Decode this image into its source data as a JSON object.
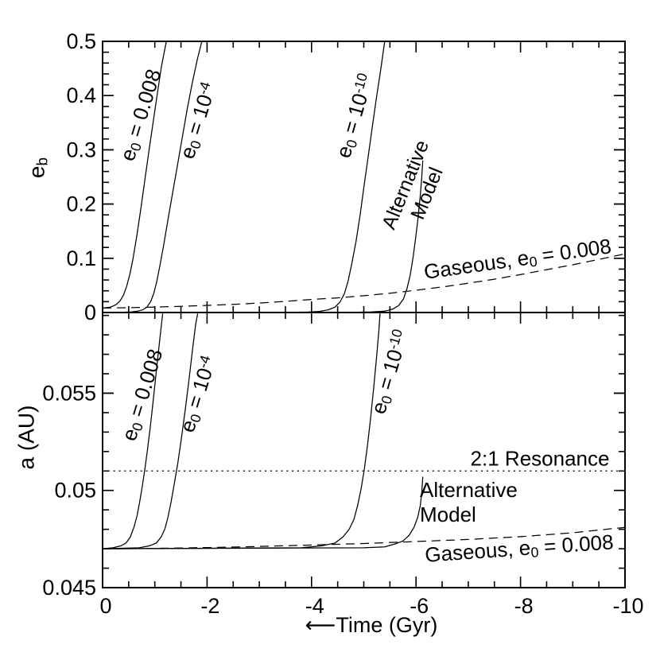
{
  "labels": {
    "ylabel_top": {
      "pre": "e",
      "sub": "b"
    },
    "ylabel_bottom": "a (AU)",
    "xlabel": {
      "arrow": "⟵",
      "text": "Time (Gyr)"
    },
    "e008": {
      "pre": "e",
      "sub": "0",
      "rest": " = 0.008"
    },
    "e4": {
      "pre": "e",
      "sub": "0",
      "rest": " = 10",
      "exp": "-4"
    },
    "e10": {
      "pre": "e",
      "sub": "0",
      "rest": " = 10",
      "exp": "-10"
    },
    "alt": {
      "line1": "Alternative",
      "line2": "Model"
    },
    "gas": {
      "pre": "Gaseous, e",
      "sub": "0",
      "rest": " = 0.008"
    },
    "resonance": "2:1 Resonance"
  },
  "chart_data": [
    {
      "panel": "eccentricity",
      "type": "line",
      "ylabel": "e_b",
      "x": {
        "label": "Time (Gyr)",
        "range": [
          0,
          -10
        ],
        "major_ticks": [
          0,
          -2,
          -4,
          -6,
          -8,
          -10
        ],
        "minor_step": 0.5
      },
      "y": {
        "range": [
          0,
          0.5
        ],
        "major_ticks": [
          0,
          0.1,
          0.2,
          0.3,
          0.4,
          0.5
        ],
        "tick_labels": [
          "0",
          "0.1",
          "0.2",
          "0.3",
          "0.4",
          "0.5"
        ],
        "minor_step": 0.02
      },
      "grid": false,
      "series": [
        {
          "name": "e0 = 0.008",
          "style": "solid",
          "points": [
            [
              0,
              0.008
            ],
            [
              -0.15,
              0.01
            ],
            [
              -0.25,
              0.014
            ],
            [
              -0.33,
              0.021
            ],
            [
              -0.4,
              0.032
            ],
            [
              -0.46,
              0.048
            ],
            [
              -0.52,
              0.07
            ],
            [
              -0.58,
              0.098
            ],
            [
              -0.65,
              0.138
            ],
            [
              -0.73,
              0.19
            ],
            [
              -0.81,
              0.245
            ],
            [
              -0.89,
              0.3
            ],
            [
              -0.97,
              0.352
            ],
            [
              -1.05,
              0.405
            ],
            [
              -1.13,
              0.455
            ],
            [
              -1.22,
              0.5
            ]
          ]
        },
        {
          "name": "e0 = 10^-4",
          "style": "solid",
          "points": [
            [
              0,
              0.0002
            ],
            [
              -0.4,
              0.0006
            ],
            [
              -0.55,
              0.0012
            ],
            [
              -0.67,
              0.0025
            ],
            [
              -0.77,
              0.005
            ],
            [
              -0.85,
              0.01
            ],
            [
              -0.92,
              0.02
            ],
            [
              -0.98,
              0.035
            ],
            [
              -1.04,
              0.058
            ],
            [
              -1.1,
              0.088
            ],
            [
              -1.17,
              0.125
            ],
            [
              -1.25,
              0.17
            ],
            [
              -1.34,
              0.22
            ],
            [
              -1.43,
              0.27
            ],
            [
              -1.52,
              0.32
            ],
            [
              -1.62,
              0.375
            ],
            [
              -1.72,
              0.425
            ],
            [
              -1.81,
              0.465
            ],
            [
              -1.9,
              0.5
            ]
          ]
        },
        {
          "name": "e0 = 10^-10",
          "style": "solid",
          "points": [
            [
              0,
              5e-05
            ],
            [
              -3.5,
              0.0003
            ],
            [
              -3.9,
              0.0008
            ],
            [
              -4.15,
              0.002
            ],
            [
              -4.32,
              0.005
            ],
            [
              -4.45,
              0.01
            ],
            [
              -4.55,
              0.02
            ],
            [
              -4.63,
              0.035
            ],
            [
              -4.7,
              0.058
            ],
            [
              -4.77,
              0.09
            ],
            [
              -4.85,
              0.13
            ],
            [
              -4.93,
              0.18
            ],
            [
              -5.0,
              0.23
            ],
            [
              -5.08,
              0.285
            ],
            [
              -5.16,
              0.34
            ],
            [
              -5.24,
              0.395
            ],
            [
              -5.32,
              0.445
            ],
            [
              -5.4,
              0.5
            ]
          ]
        },
        {
          "name": "Alternative Model",
          "style": "solid",
          "points": [
            [
              0,
              5e-05
            ],
            [
              -4.8,
              0.0004
            ],
            [
              -5.15,
              0.001
            ],
            [
              -5.4,
              0.0025
            ],
            [
              -5.55,
              0.006
            ],
            [
              -5.67,
              0.013
            ],
            [
              -5.76,
              0.025
            ],
            [
              -5.83,
              0.045
            ],
            [
              -5.89,
              0.07
            ],
            [
              -5.94,
              0.1
            ],
            [
              -5.99,
              0.135
            ],
            [
              -6.04,
              0.175
            ],
            [
              -6.08,
              0.215
            ],
            [
              -6.11,
              0.25
            ],
            [
              -6.13,
              0.28
            ]
          ]
        },
        {
          "name": "Gaseous, e0 = 0.008",
          "style": "dashed",
          "points": [
            [
              0,
              0.008
            ],
            [
              -0.5,
              0.009
            ],
            [
              -1,
              0.01
            ],
            [
              -1.5,
              0.0115
            ],
            [
              -2,
              0.013
            ],
            [
              -2.5,
              0.015
            ],
            [
              -3,
              0.0175
            ],
            [
              -3.5,
              0.0205
            ],
            [
              -4,
              0.024
            ],
            [
              -4.5,
              0.027
            ],
            [
              -5,
              0.031
            ],
            [
              -5.5,
              0.0355
            ],
            [
              -6,
              0.041
            ],
            [
              -6.5,
              0.047
            ],
            [
              -7,
              0.054
            ],
            [
              -7.5,
              0.0615
            ],
            [
              -8,
              0.07
            ],
            [
              -8.5,
              0.079
            ],
            [
              -9,
              0.088
            ],
            [
              -9.5,
              0.098
            ],
            [
              -10,
              0.108
            ]
          ]
        }
      ]
    },
    {
      "panel": "semimajor-axis",
      "type": "line",
      "ylabel": "a (AU)",
      "x": {
        "label": "Time (Gyr)",
        "range": [
          0,
          -10
        ],
        "major_ticks": [
          0,
          -2,
          -4,
          -6,
          -8,
          -10
        ],
        "tick_labels": [
          "0",
          "-2",
          "-4",
          "-6",
          "-8",
          "-10"
        ],
        "minor_step": 0.5
      },
      "y": {
        "range": [
          0.045,
          0.0591
        ],
        "major_ticks": [
          0.045,
          0.05,
          0.055
        ],
        "tick_labels": [
          "0.045",
          "0.05",
          "0.055"
        ],
        "minor_step": 0.001
      },
      "grid": false,
      "annotations": [
        {
          "text": "2:1 Resonance",
          "y": 0.051
        }
      ],
      "series": [
        {
          "name": "2:1 Resonance",
          "style": "dotted",
          "points": [
            [
              0,
              0.051
            ],
            [
              -10,
              0.051
            ]
          ]
        },
        {
          "name": "e0 = 0.008",
          "style": "solid",
          "points": [
            [
              0,
              0.047
            ],
            [
              -0.2,
              0.04705
            ],
            [
              -0.35,
              0.04715
            ],
            [
              -0.45,
              0.0473
            ],
            [
              -0.53,
              0.0476
            ],
            [
              -0.6,
              0.0481
            ],
            [
              -0.66,
              0.0487
            ],
            [
              -0.71,
              0.0494
            ],
            [
              -0.76,
              0.0502
            ],
            [
              -0.81,
              0.0511
            ],
            [
              -0.86,
              0.0521
            ],
            [
              -0.92,
              0.0534
            ],
            [
              -0.98,
              0.0549
            ],
            [
              -1.04,
              0.0564
            ],
            [
              -1.1,
              0.0579
            ],
            [
              -1.15,
              0.0591
            ]
          ]
        },
        {
          "name": "e0 = 10^-4",
          "style": "solid",
          "points": [
            [
              0,
              0.047
            ],
            [
              -0.7,
              0.04705
            ],
            [
              -0.9,
              0.04715
            ],
            [
              -1.03,
              0.0473
            ],
            [
              -1.12,
              0.0476
            ],
            [
              -1.19,
              0.048
            ],
            [
              -1.25,
              0.0486
            ],
            [
              -1.31,
              0.0494
            ],
            [
              -1.37,
              0.0503
            ],
            [
              -1.44,
              0.0514
            ],
            [
              -1.51,
              0.0527
            ],
            [
              -1.58,
              0.0541
            ],
            [
              -1.65,
              0.0556
            ],
            [
              -1.72,
              0.0572
            ],
            [
              -1.78,
              0.0585
            ],
            [
              -1.82,
              0.0591
            ]
          ]
        },
        {
          "name": "e0 = 10^-10",
          "style": "solid",
          "points": [
            [
              0,
              0.047
            ],
            [
              -3.8,
              0.04705
            ],
            [
              -4.2,
              0.04715
            ],
            [
              -4.45,
              0.0473
            ],
            [
              -4.6,
              0.0476
            ],
            [
              -4.72,
              0.048
            ],
            [
              -4.81,
              0.0485
            ],
            [
              -4.88,
              0.0492
            ],
            [
              -4.95,
              0.0501
            ],
            [
              -5.01,
              0.0511
            ],
            [
              -5.07,
              0.0523
            ],
            [
              -5.13,
              0.0537
            ],
            [
              -5.19,
              0.0553
            ],
            [
              -5.25,
              0.057
            ],
            [
              -5.29,
              0.0583
            ],
            [
              -5.31,
              0.0591
            ]
          ]
        },
        {
          "name": "Alternative Model",
          "style": "solid",
          "points": [
            [
              0,
              0.047
            ],
            [
              -5.0,
              0.04705
            ],
            [
              -5.4,
              0.0471
            ],
            [
              -5.6,
              0.04725
            ],
            [
              -5.75,
              0.0474
            ],
            [
              -5.87,
              0.0477
            ],
            [
              -5.96,
              0.0481
            ],
            [
              -6.03,
              0.0486
            ],
            [
              -6.08,
              0.0492
            ],
            [
              -6.11,
              0.0499
            ],
            [
              -6.13,
              0.0507
            ]
          ]
        },
        {
          "name": "Gaseous, e0 = 0.008",
          "style": "dashed",
          "points": [
            [
              0,
              0.047
            ],
            [
              -1,
              0.04702
            ],
            [
              -2,
              0.04706
            ],
            [
              -3,
              0.04712
            ],
            [
              -4,
              0.04719
            ],
            [
              -5,
              0.04727
            ],
            [
              -6,
              0.04737
            ],
            [
              -7,
              0.04748
            ],
            [
              -8,
              0.04762
            ],
            [
              -9,
              0.04782
            ],
            [
              -10,
              0.0481
            ]
          ]
        }
      ]
    }
  ]
}
